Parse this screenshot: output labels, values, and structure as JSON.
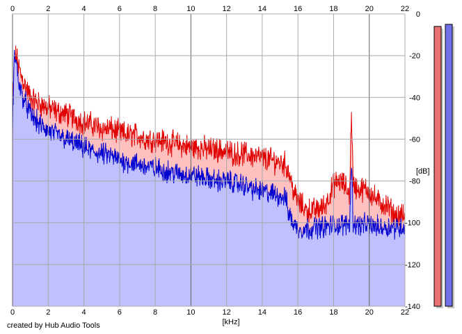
{
  "credit": "created by Hub Audio Tools",
  "chart_data": {
    "type": "area",
    "xlabel": "[kHz]",
    "ylabel": "[dB]",
    "xlim": [
      0,
      22
    ],
    "ylim": [
      -140,
      0
    ],
    "x_ticks": [
      0,
      2,
      4,
      6,
      8,
      10,
      12,
      14,
      16,
      18,
      20,
      22
    ],
    "y_ticks": [
      0,
      -20,
      -40,
      -60,
      -80,
      -100,
      -120,
      -140
    ],
    "grid": true,
    "colors": {
      "red_line": "#e00000",
      "red_fill": "#ffc0c0",
      "blue_line": "#0000d0",
      "blue_fill": "#c0c0ff",
      "grid_minor": "#a8a8a8",
      "grid_major": "#606060"
    },
    "series": [
      {
        "color": "red",
        "x": [
          0,
          0.1,
          0.2,
          0.3,
          0.5,
          0.8,
          1,
          1.5,
          2,
          2.5,
          3,
          3.5,
          4,
          4.5,
          5,
          5.5,
          6,
          6.5,
          7,
          7.5,
          8,
          8.5,
          9,
          9.5,
          10,
          10.5,
          11,
          11.5,
          12,
          12.5,
          13,
          13.5,
          14,
          14.5,
          15,
          15.3,
          15.5,
          15.8,
          16,
          16.5,
          17,
          17.5,
          18,
          18.3,
          18.6,
          18.9,
          19,
          19.1,
          19.4,
          19.8,
          20,
          20.5,
          21,
          21.5,
          22
        ],
        "values": [
          -45,
          -22,
          -20,
          -24,
          -30,
          -36,
          -40,
          -43,
          -45,
          -47,
          -48,
          -50,
          -52,
          -53,
          -55,
          -55,
          -57,
          -58,
          -58,
          -60,
          -60,
          -61,
          -62,
          -63,
          -64,
          -64,
          -65,
          -65,
          -66,
          -67,
          -67,
          -68,
          -69,
          -70,
          -71,
          -72,
          -76,
          -86,
          -90,
          -94,
          -94,
          -92,
          -82,
          -80,
          -82,
          -86,
          -45,
          -82,
          -84,
          -84,
          -85,
          -90,
          -92,
          -97,
          -97
        ]
      },
      {
        "color": "blue",
        "x": [
          0,
          0.1,
          0.2,
          0.3,
          0.5,
          0.8,
          1,
          1.5,
          2,
          2.5,
          3,
          3.5,
          4,
          4.5,
          5,
          5.5,
          6,
          6.5,
          7,
          7.5,
          8,
          8.5,
          9,
          9.5,
          10,
          10.5,
          11,
          11.5,
          12,
          12.5,
          13,
          13.5,
          14,
          14.5,
          15,
          15.3,
          15.5,
          15.8,
          16,
          16.5,
          17,
          17.5,
          18,
          18.3,
          18.6,
          18.9,
          19,
          19.1,
          19.4,
          19.8,
          20,
          20.5,
          21,
          21.5,
          22
        ],
        "values": [
          -55,
          -20,
          -22,
          -30,
          -38,
          -44,
          -48,
          -53,
          -56,
          -58,
          -60,
          -62,
          -64,
          -66,
          -67,
          -68,
          -70,
          -71,
          -72,
          -73,
          -74,
          -75,
          -76,
          -77,
          -77,
          -78,
          -79,
          -80,
          -80,
          -81,
          -82,
          -84,
          -85,
          -86,
          -87,
          -88,
          -96,
          -101,
          -103,
          -103,
          -102,
          -102,
          -101,
          -101,
          -101,
          -100,
          -70,
          -100,
          -101,
          -101,
          -101,
          -102,
          -102,
          -102,
          -102
        ]
      }
    ],
    "level_meters": [
      {
        "color": "red",
        "value": -6
      },
      {
        "color": "blue",
        "value": -5
      }
    ]
  }
}
